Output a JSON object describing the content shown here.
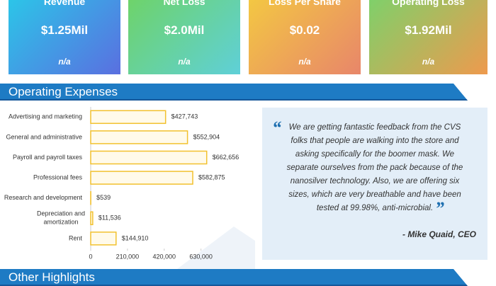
{
  "cards": [
    {
      "label": "Revenue",
      "value": "$1.25Mil",
      "note": "n/a"
    },
    {
      "label": "Net Loss",
      "value": "$2.0Mil",
      "note": "n/a"
    },
    {
      "label": "Loss Per Share",
      "value": "$0.02",
      "note": "n/a"
    },
    {
      "label": "Operating Loss",
      "value": "$1.92Mil",
      "note": "n/a"
    }
  ],
  "sections": [
    "Operating Expenses",
    "Other Highlights"
  ],
  "chart_data": {
    "type": "hbar",
    "categories": [
      "Advertising and marketing",
      "General and administrative",
      "Payroll and payroll taxes",
      "Professional fees",
      "Research and development",
      "Depreciation and amortization",
      "Rent"
    ],
    "values": [
      427743,
      552904,
      662656,
      582875,
      539,
      11536,
      144910
    ],
    "value_labels": [
      "$427,743",
      "$552,904",
      "$662,656",
      "$582,875",
      "$539",
      "$11,536",
      "$144,910"
    ],
    "color": "#f2c12e",
    "xlim": [
      0,
      680000
    ],
    "xticks": [
      0,
      {
        "value": 210000,
        "label": "210,000"
      },
      {
        "value": 420000,
        "label": "420,000"
      },
      {
        "value": 630000,
        "label": "630,000"
      }
    ]
  },
  "quote": {
    "lines": [
      "We are getting fantastic feedback from the CVS",
      "folks that people are walking into the store and",
      "asking specifically for the boomer mask. We",
      "separate ourselves from the pack because of the",
      "nanosilver technology. Also, we are offering six",
      "sizes, which are very breathable and have been",
      "tested at 99.98%, anti-microbial."
    ],
    "author": "- Mike Quaid, CEO"
  }
}
